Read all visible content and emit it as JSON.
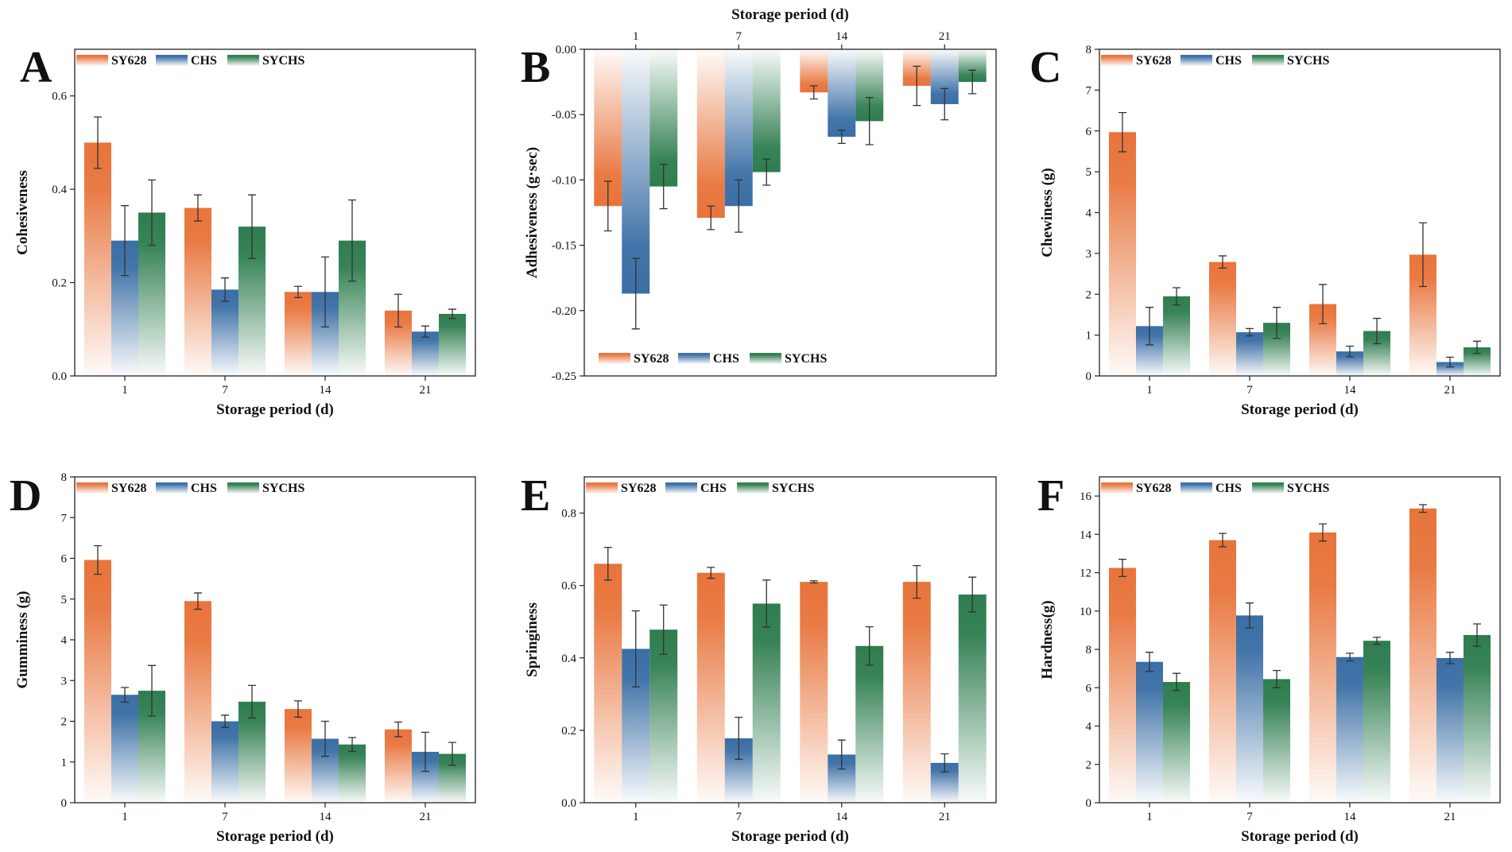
{
  "legend_labels": [
    "SY628",
    "CHS",
    "SYCHS"
  ],
  "series_colors": {
    "SY628": "#e8743b",
    "CHS": "#3a6ea5",
    "SYCHS": "#2e7d4f"
  },
  "chart_data": [
    {
      "panel": "A",
      "type": "bar",
      "title": "",
      "categories": [
        "1",
        "7",
        "14",
        "21"
      ],
      "xlabel": "Storage period (d)",
      "ylabel": "Cohesiveness",
      "ylim": [
        0,
        0.7
      ],
      "yticks": [
        0.0,
        0.2,
        0.4,
        0.6
      ],
      "ytick_labels": [
        "0.0",
        "0.2",
        "0.4",
        "0.6"
      ],
      "xaxis_position": "bottom",
      "series": [
        {
          "name": "SY628",
          "values": [
            0.5,
            0.36,
            0.18,
            0.14
          ],
          "errors": [
            0.055,
            0.028,
            0.012,
            0.035
          ]
        },
        {
          "name": "CHS",
          "values": [
            0.29,
            0.185,
            0.18,
            0.095
          ],
          "errors": [
            0.075,
            0.025,
            0.075,
            0.012
          ]
        },
        {
          "name": "SYCHS",
          "values": [
            0.35,
            0.32,
            0.29,
            0.133
          ],
          "errors": [
            0.07,
            0.068,
            0.087,
            0.01
          ]
        }
      ]
    },
    {
      "panel": "B",
      "type": "bar",
      "title": "",
      "categories": [
        "1",
        "7",
        "14",
        "21"
      ],
      "xlabel": "Storage period (d)",
      "ylabel": "Adhesiveness (g·sec)",
      "ylim": [
        -0.25,
        0
      ],
      "yticks": [
        0.0,
        -0.05,
        -0.1,
        -0.15,
        -0.2,
        -0.25
      ],
      "ytick_labels": [
        "0.00",
        "-0.05",
        "-0.10",
        "-0.15",
        "-0.20",
        "-0.25"
      ],
      "xaxis_position": "top",
      "series": [
        {
          "name": "SY628",
          "values": [
            -0.12,
            -0.129,
            -0.033,
            -0.028
          ],
          "errors": [
            0.019,
            0.009,
            0.005,
            0.015
          ]
        },
        {
          "name": "CHS",
          "values": [
            -0.187,
            -0.12,
            -0.067,
            -0.042
          ],
          "errors": [
            0.027,
            0.02,
            0.005,
            0.012
          ]
        },
        {
          "name": "SYCHS",
          "values": [
            -0.105,
            -0.094,
            -0.055,
            -0.025
          ],
          "errors": [
            0.017,
            0.01,
            0.018,
            0.009
          ]
        }
      ]
    },
    {
      "panel": "C",
      "type": "bar",
      "title": "",
      "categories": [
        "1",
        "7",
        "14",
        "21"
      ],
      "xlabel": "Storage period (d)",
      "ylabel": "Chewiness (g)",
      "ylim": [
        0,
        8
      ],
      "yticks": [
        0,
        1,
        2,
        3,
        4,
        5,
        6,
        7,
        8
      ],
      "ytick_labels": [
        "0",
        "1",
        "2",
        "3",
        "4",
        "5",
        "6",
        "7",
        "8"
      ],
      "xaxis_position": "bottom",
      "series": [
        {
          "name": "SY628",
          "values": [
            5.97,
            2.79,
            1.76,
            2.97
          ],
          "errors": [
            0.48,
            0.15,
            0.48,
            0.78
          ]
        },
        {
          "name": "CHS",
          "values": [
            1.22,
            1.07,
            0.6,
            0.34
          ],
          "errors": [
            0.46,
            0.09,
            0.13,
            0.12
          ]
        },
        {
          "name": "SYCHS",
          "values": [
            1.95,
            1.3,
            1.1,
            0.7
          ],
          "errors": [
            0.21,
            0.38,
            0.31,
            0.15
          ]
        }
      ]
    },
    {
      "panel": "D",
      "type": "bar",
      "title": "",
      "categories": [
        "1",
        "7",
        "14",
        "21"
      ],
      "xlabel": "Storage period (d)",
      "ylabel": "Gumminess (g)",
      "ylim": [
        0,
        8
      ],
      "yticks": [
        0,
        1,
        2,
        3,
        4,
        5,
        6,
        7,
        8
      ],
      "ytick_labels": [
        "0",
        "1",
        "2",
        "3",
        "4",
        "5",
        "6",
        "7",
        "8"
      ],
      "xaxis_position": "bottom",
      "series": [
        {
          "name": "SY628",
          "values": [
            5.96,
            4.95,
            2.3,
            1.8
          ],
          "errors": [
            0.35,
            0.2,
            0.2,
            0.18
          ]
        },
        {
          "name": "CHS",
          "values": [
            2.65,
            2.0,
            1.57,
            1.25
          ],
          "errors": [
            0.18,
            0.15,
            0.43,
            0.48
          ]
        },
        {
          "name": "SYCHS",
          "values": [
            2.75,
            2.48,
            1.43,
            1.2
          ],
          "errors": [
            0.62,
            0.4,
            0.17,
            0.28
          ]
        }
      ]
    },
    {
      "panel": "E",
      "type": "bar",
      "title": "",
      "categories": [
        "1",
        "7",
        "14",
        "21"
      ],
      "xlabel": "Storage period (d)",
      "ylabel": "Springiness",
      "ylim": [
        0,
        0.9
      ],
      "yticks": [
        0.0,
        0.2,
        0.4,
        0.6,
        0.8
      ],
      "ytick_labels": [
        "0.0",
        "0.2",
        "0.4",
        "0.6",
        "0.8"
      ],
      "xaxis_position": "bottom",
      "series": [
        {
          "name": "SY628",
          "values": [
            0.66,
            0.635,
            0.61,
            0.61
          ],
          "errors": [
            0.045,
            0.015,
            0.003,
            0.045
          ]
        },
        {
          "name": "CHS",
          "values": [
            0.425,
            0.178,
            0.133,
            0.11
          ],
          "errors": [
            0.105,
            0.058,
            0.04,
            0.025
          ]
        },
        {
          "name": "SYCHS",
          "values": [
            0.478,
            0.55,
            0.433,
            0.575
          ],
          "errors": [
            0.068,
            0.065,
            0.053,
            0.048
          ]
        }
      ]
    },
    {
      "panel": "F",
      "type": "bar",
      "title": "",
      "categories": [
        "1",
        "7",
        "14",
        "21"
      ],
      "xlabel": "Storage period (d)",
      "ylabel": "Hardness(g)",
      "ylim": [
        0,
        17
      ],
      "yticks": [
        0,
        2,
        4,
        6,
        8,
        10,
        12,
        14,
        16
      ],
      "ytick_labels": [
        "0",
        "2",
        "4",
        "6",
        "8",
        "10",
        "12",
        "14",
        "16"
      ],
      "xaxis_position": "bottom",
      "series": [
        {
          "name": "SY628",
          "values": [
            12.25,
            13.7,
            14.1,
            15.35
          ],
          "errors": [
            0.45,
            0.35,
            0.45,
            0.2
          ]
        },
        {
          "name": "CHS",
          "values": [
            7.35,
            9.77,
            7.6,
            7.55
          ],
          "errors": [
            0.5,
            0.65,
            0.2,
            0.3
          ]
        },
        {
          "name": "SYCHS",
          "values": [
            6.3,
            6.45,
            8.45,
            8.75
          ],
          "errors": [
            0.45,
            0.45,
            0.18,
            0.58
          ]
        }
      ]
    }
  ]
}
